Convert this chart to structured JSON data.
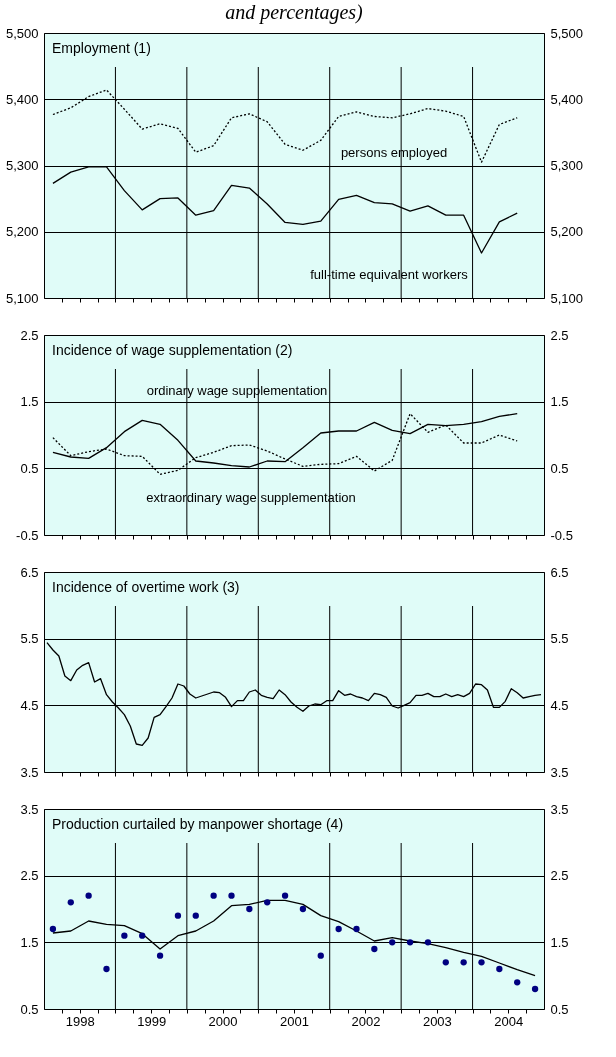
{
  "chart_data": [
    {
      "type": "line",
      "title": "Employment (1)",
      "annotations": [
        "and percentages)"
      ],
      "x": [
        1998.125,
        1998.375,
        1998.625,
        1998.875,
        1999.125,
        1999.375,
        1999.625,
        1999.875,
        2000.125,
        2000.375,
        2000.625,
        2000.875,
        2001.125,
        2001.375,
        2001.625,
        2001.875,
        2002.125,
        2002.375,
        2002.625,
        2002.875,
        2003.125,
        2003.375,
        2003.625,
        2003.875,
        2004.125,
        2004.375,
        2004.625
      ],
      "series": [
        {
          "name": "persons employed",
          "color": "#000000",
          "line_style": "dotted",
          "values": [
            5377,
            5387,
            5404,
            5414,
            5385,
            5355,
            5363,
            5356,
            5320,
            5330,
            5372,
            5378,
            5366,
            5332,
            5323,
            5338,
            5374,
            5381,
            5374,
            5372,
            5378,
            5386,
            5382,
            5374,
            5305,
            5362,
            5372
          ]
        },
        {
          "name": "full-time equivalent workers",
          "color": "#000000",
          "line_style": "solid",
          "values": [
            5273,
            5290,
            5298,
            5298,
            5262,
            5233,
            5250,
            5251,
            5225,
            5232,
            5270,
            5266,
            5242,
            5214,
            5211,
            5216,
            5249,
            5255,
            5244,
            5242,
            5231,
            5239,
            5225,
            5225,
            5168,
            5215,
            5228
          ]
        }
      ],
      "xlim": [
        1998,
        2005
      ],
      "xticks": [
        {
          "value": 1998.25,
          "label": null
        },
        {
          "value": 1998.5,
          "label": null
        },
        {
          "value": 1998.75,
          "label": null
        },
        {
          "value": 1999,
          "label": null
        },
        {
          "value": 1999.25,
          "label": null
        },
        {
          "value": 1999.5,
          "label": null
        },
        {
          "value": 1999.75,
          "label": null
        },
        {
          "value": 2000,
          "label": null
        },
        {
          "value": 2000.25,
          "label": null
        },
        {
          "value": 2000.5,
          "label": null
        },
        {
          "value": 2000.75,
          "label": null
        },
        {
          "value": 2001,
          "label": null
        },
        {
          "value": 2001.25,
          "label": null
        },
        {
          "value": 2001.5,
          "label": null
        },
        {
          "value": 2001.75,
          "label": null
        },
        {
          "value": 2002,
          "label": null
        },
        {
          "value": 2002.25,
          "label": null
        },
        {
          "value": 2002.5,
          "label": null
        },
        {
          "value": 2002.75,
          "label": null
        },
        {
          "value": 2003,
          "label": null
        },
        {
          "value": 2003.25,
          "label": null
        },
        {
          "value": 2003.5,
          "label": null
        },
        {
          "value": 2003.75,
          "label": null
        },
        {
          "value": 2004,
          "label": null
        },
        {
          "value": 2004.25,
          "label": null
        },
        {
          "value": 2004.5,
          "label": null
        },
        {
          "value": 2004.75,
          "label": null
        }
      ],
      "ylim": [
        5100,
        5500
      ],
      "yticks": [
        {
          "value": 5100,
          "label": "5,100"
        },
        {
          "value": 5200,
          "label": "5,200"
        },
        {
          "value": 5300,
          "label": "5,300"
        },
        {
          "value": 5400,
          "label": "5,400"
        },
        {
          "value": 5500,
          "label": "5,500"
        }
      ],
      "y2lim": [
        5100,
        5500
      ],
      "y2ticks": [
        {
          "value": 5100,
          "label": "5,100"
        },
        {
          "value": 5200,
          "label": "5,200"
        },
        {
          "value": 5300,
          "label": "5,300"
        },
        {
          "value": 5400,
          "label": "5,400"
        },
        {
          "value": 5500,
          "label": "5,500"
        }
      ],
      "grid": true,
      "tick_labels": "y"
    },
    {
      "type": "line",
      "title": "Incidence of wage supplementation (2)",
      "x": [
        1998.125,
        1998.375,
        1998.625,
        1998.875,
        1999.125,
        1999.375,
        1999.625,
        1999.875,
        2000.125,
        2000.375,
        2000.625,
        2000.875,
        2001.125,
        2001.375,
        2001.625,
        2001.875,
        2002.125,
        2002.375,
        2002.625,
        2002.875,
        2003.125,
        2003.375,
        2003.625,
        2003.875,
        2004.125,
        2004.375,
        2004.625
      ],
      "series": [
        {
          "name": "ordinary wage supplementation",
          "color": "#000000",
          "line_style": "solid",
          "values": [
            0.74,
            0.67,
            0.65,
            0.81,
            1.05,
            1.22,
            1.16,
            0.92,
            0.61,
            0.58,
            0.54,
            0.52,
            0.61,
            0.6,
            0.81,
            1.03,
            1.06,
            1.06,
            1.19,
            1.07,
            1.02,
            1.16,
            1.14,
            1.16,
            1.2,
            1.28,
            1.32
          ]
        },
        {
          "name": "extraordinary wage supplementation",
          "color": "#000000",
          "line_style": "dotted",
          "values": [
            0.96,
            0.69,
            0.75,
            0.79,
            0.69,
            0.68,
            0.41,
            0.47,
            0.66,
            0.74,
            0.84,
            0.85,
            0.76,
            0.64,
            0.53,
            0.56,
            0.57,
            0.68,
            0.46,
            0.62,
            1.32,
            1.04,
            1.15,
            0.88,
            0.88,
            1.0,
            0.91
          ]
        }
      ],
      "xlim": [
        1998,
        2005
      ],
      "xticks": [
        {
          "value": 1998.25,
          "label": null
        },
        {
          "value": 1998.5,
          "label": null
        },
        {
          "value": 1998.75,
          "label": null
        },
        {
          "value": 1999,
          "label": null
        },
        {
          "value": 1999.25,
          "label": null
        },
        {
          "value": 1999.5,
          "label": null
        },
        {
          "value": 1999.75,
          "label": null
        },
        {
          "value": 2000,
          "label": null
        },
        {
          "value": 2000.25,
          "label": null
        },
        {
          "value": 2000.5,
          "label": null
        },
        {
          "value": 2000.75,
          "label": null
        },
        {
          "value": 2001,
          "label": null
        },
        {
          "value": 2001.25,
          "label": null
        },
        {
          "value": 2001.5,
          "label": null
        },
        {
          "value": 2001.75,
          "label": null
        },
        {
          "value": 2002,
          "label": null
        },
        {
          "value": 2002.25,
          "label": null
        },
        {
          "value": 2002.5,
          "label": null
        },
        {
          "value": 2002.75,
          "label": null
        },
        {
          "value": 2003,
          "label": null
        },
        {
          "value": 2003.25,
          "label": null
        },
        {
          "value": 2003.5,
          "label": null
        },
        {
          "value": 2003.75,
          "label": null
        },
        {
          "value": 2004,
          "label": null
        },
        {
          "value": 2004.25,
          "label": null
        },
        {
          "value": 2004.5,
          "label": null
        },
        {
          "value": 2004.75,
          "label": null
        }
      ],
      "ylim": [
        -0.5,
        2.5
      ],
      "yticks": [
        -0.5,
        0.5,
        1.5,
        2.5
      ],
      "y2lim": [
        -0.5,
        2.5
      ],
      "y2ticks": [
        -0.5,
        0.5,
        1.5,
        2.5
      ],
      "grid": true,
      "tick_labels": "y"
    },
    {
      "type": "line",
      "title": "Incidence of overtime work (3)",
      "x": [
        1998.042,
        1998.125,
        1998.208,
        1998.292,
        1998.375,
        1998.458,
        1998.542,
        1998.625,
        1998.708,
        1998.792,
        1998.875,
        1998.958,
        1999.042,
        1999.125,
        1999.208,
        1999.292,
        1999.375,
        1999.458,
        1999.542,
        1999.625,
        1999.708,
        1999.792,
        1999.875,
        1999.958,
        2000.042,
        2000.125,
        2000.208,
        2000.292,
        2000.375,
        2000.458,
        2000.542,
        2000.625,
        2000.708,
        2000.792,
        2000.875,
        2000.958,
        2001.042,
        2001.125,
        2001.208,
        2001.292,
        2001.375,
        2001.458,
        2001.542,
        2001.625,
        2001.708,
        2001.792,
        2001.875,
        2001.958,
        2002.042,
        2002.125,
        2002.208,
        2002.292,
        2002.375,
        2002.458,
        2002.542,
        2002.625,
        2002.708,
        2002.792,
        2002.875,
        2002.958,
        2003.042,
        2003.125,
        2003.208,
        2003.292,
        2003.375,
        2003.458,
        2003.542,
        2003.625,
        2003.708,
        2003.792,
        2003.875,
        2003.958,
        2004.042,
        2004.125,
        2004.208,
        2004.292,
        2004.375,
        2004.458,
        2004.542,
        2004.625,
        2004.708,
        2004.792,
        2004.875,
        2004.958
      ],
      "series": [
        {
          "color": "#000000",
          "line_style": "solid",
          "values": [
            5.44,
            5.33,
            5.24,
            4.94,
            4.87,
            5.03,
            5.1,
            5.14,
            4.85,
            4.9,
            4.66,
            4.55,
            4.46,
            4.36,
            4.19,
            3.92,
            3.9,
            4.01,
            4.32,
            4.36,
            4.48,
            4.61,
            4.82,
            4.79,
            4.67,
            4.61,
            4.64,
            4.67,
            4.7,
            4.69,
            4.62,
            4.48,
            4.57,
            4.57,
            4.7,
            4.73,
            4.65,
            4.62,
            4.6,
            4.73,
            4.66,
            4.55,
            4.47,
            4.41,
            4.49,
            4.52,
            4.51,
            4.57,
            4.57,
            4.72,
            4.65,
            4.67,
            4.63,
            4.61,
            4.57,
            4.68,
            4.66,
            4.62,
            4.49,
            4.46,
            4.5,
            4.54,
            4.65,
            4.65,
            4.68,
            4.63,
            4.63,
            4.67,
            4.63,
            4.66,
            4.63,
            4.68,
            4.82,
            4.81,
            4.73,
            4.47,
            4.47,
            4.56,
            4.75,
            4.69,
            4.61,
            4.63,
            4.65,
            4.66
          ]
        }
      ],
      "xlim": [
        1998,
        2005
      ],
      "xticks": [
        {
          "value": 1998.25,
          "label": null
        },
        {
          "value": 1998.5,
          "label": null
        },
        {
          "value": 1998.75,
          "label": null
        },
        {
          "value": 1999,
          "label": null
        },
        {
          "value": 1999.25,
          "label": null
        },
        {
          "value": 1999.5,
          "label": null
        },
        {
          "value": 1999.75,
          "label": null
        },
        {
          "value": 2000,
          "label": null
        },
        {
          "value": 2000.25,
          "label": null
        },
        {
          "value": 2000.5,
          "label": null
        },
        {
          "value": 2000.75,
          "label": null
        },
        {
          "value": 2001,
          "label": null
        },
        {
          "value": 2001.25,
          "label": null
        },
        {
          "value": 2001.5,
          "label": null
        },
        {
          "value": 2001.75,
          "label": null
        },
        {
          "value": 2002,
          "label": null
        },
        {
          "value": 2002.25,
          "label": null
        },
        {
          "value": 2002.5,
          "label": null
        },
        {
          "value": 2002.75,
          "label": null
        },
        {
          "value": 2003,
          "label": null
        },
        {
          "value": 2003.25,
          "label": null
        },
        {
          "value": 2003.5,
          "label": null
        },
        {
          "value": 2003.75,
          "label": null
        },
        {
          "value": 2004,
          "label": null
        },
        {
          "value": 2004.25,
          "label": null
        },
        {
          "value": 2004.5,
          "label": null
        },
        {
          "value": 2004.75,
          "label": null
        }
      ],
      "ylim": [
        3.5,
        6.5
      ],
      "yticks": [
        3.5,
        4.5,
        5.5,
        6.5
      ],
      "y2lim": [
        3.5,
        6.5
      ],
      "y2ticks": [
        3.5,
        4.5,
        5.5,
        6.5
      ],
      "grid": true,
      "tick_labels": "y"
    },
    {
      "type": "line",
      "title": "Production curtailed by manpower shortage (4)",
      "x": [
        1998.125,
        1998.375,
        1998.625,
        1998.875,
        1999.125,
        1999.375,
        1999.625,
        1999.875,
        2000.125,
        2000.375,
        2000.625,
        2000.875,
        2001.125,
        2001.375,
        2001.625,
        2001.875,
        2002.125,
        2002.375,
        2002.625,
        2002.875,
        2003.125,
        2003.375,
        2003.625,
        2003.875,
        2004.125,
        2004.375,
        2004.625,
        2004.875
      ],
      "series": [
        {
          "type": "line",
          "color": "#000000",
          "line_style": "solid",
          "values": [
            1.64,
            1.67,
            1.82,
            1.77,
            1.75,
            1.63,
            1.4,
            1.6,
            1.67,
            1.82,
            2.05,
            2.07,
            2.13,
            2.13,
            2.07,
            1.9,
            1.81,
            1.67,
            1.52,
            1.57,
            1.52,
            1.48,
            1.42,
            1.35,
            1.29,
            1.19,
            1.09,
            1.0
          ]
        },
        {
          "type": "scatter",
          "color": "#000080",
          "marker": "circle",
          "values": [
            1.7,
            2.1,
            2.2,
            1.1,
            1.6,
            1.6,
            1.3,
            1.9,
            1.9,
            2.2,
            2.2,
            2.0,
            2.1,
            2.2,
            2.0,
            1.3,
            1.7,
            1.7,
            1.4,
            1.5,
            1.5,
            1.5,
            1.2,
            1.2,
            1.2,
            1.1,
            0.9,
            0.8
          ]
        }
      ],
      "xlim": [
        1998,
        2005
      ],
      "xticks": [
        {
          "value": 1998.25,
          "label": null
        },
        {
          "value": 1998.5,
          "label": "1998"
        },
        {
          "value": 1998.75,
          "label": null
        },
        {
          "value": 1999,
          "label": null
        },
        {
          "value": 1999.25,
          "label": null
        },
        {
          "value": 1999.5,
          "label": "1999"
        },
        {
          "value": 1999.75,
          "label": null
        },
        {
          "value": 2000,
          "label": null
        },
        {
          "value": 2000.25,
          "label": null
        },
        {
          "value": 2000.5,
          "label": "2000"
        },
        {
          "value": 2000.75,
          "label": null
        },
        {
          "value": 2001,
          "label": null
        },
        {
          "value": 2001.25,
          "label": null
        },
        {
          "value": 2001.5,
          "label": "2001"
        },
        {
          "value": 2001.75,
          "label": null
        },
        {
          "value": 2002,
          "label": null
        },
        {
          "value": 2002.25,
          "label": null
        },
        {
          "value": 2002.5,
          "label": "2002"
        },
        {
          "value": 2002.75,
          "label": null
        },
        {
          "value": 2003,
          "label": null
        },
        {
          "value": 2003.25,
          "label": null
        },
        {
          "value": 2003.5,
          "label": "2003"
        },
        {
          "value": 2003.75,
          "label": null
        },
        {
          "value": 2004,
          "label": null
        },
        {
          "value": 2004.25,
          "label": null
        },
        {
          "value": 2004.5,
          "label": "2004"
        },
        {
          "value": 2004.75,
          "label": null
        }
      ],
      "ylim": [
        0.5,
        3.5
      ],
      "yticks": [
        0.5,
        1.5,
        2.5,
        3.5
      ],
      "y2lim": [
        0.5,
        3.5
      ],
      "y2ticks": [
        0.5,
        1.5,
        2.5,
        3.5
      ],
      "grid": true
    }
  ]
}
